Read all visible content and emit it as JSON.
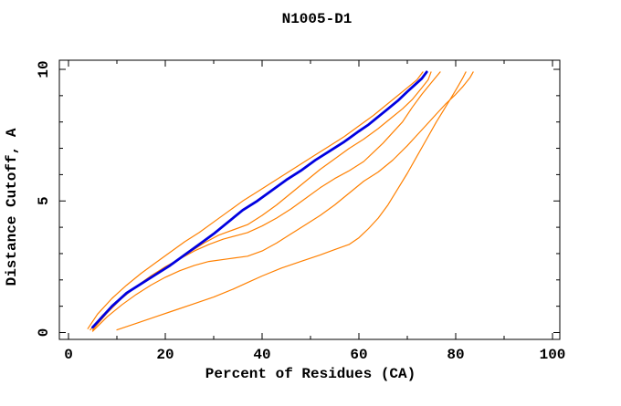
{
  "title": "N1005-D1",
  "chart_data": {
    "type": "line",
    "title": "N1005-D1",
    "xlabel": "Percent of Residues (CA)",
    "ylabel": "Distance Cutoff, A",
    "xlim": [
      0,
      100
    ],
    "ylim": [
      0,
      10
    ],
    "x_major_ticks": [
      0,
      20,
      40,
      60,
      80,
      100
    ],
    "x_minor_step": 10,
    "y_major_ticks": [
      0,
      5,
      10
    ],
    "y_minor_step": 1,
    "grid": false,
    "legend": "none",
    "colors": {
      "orange_line": "#ff8000",
      "blue_line": "#0000e0",
      "axis": "#000000",
      "background": "#ffffff"
    },
    "series": [
      {
        "name": "orange-line-1",
        "color": "#ff8000",
        "width": 1.2,
        "points": [
          [
            4,
            0.15
          ],
          [
            6,
            0.7
          ],
          [
            9,
            1.3
          ],
          [
            12,
            1.8
          ],
          [
            15,
            2.25
          ],
          [
            18,
            2.65
          ],
          [
            21,
            3.05
          ],
          [
            24,
            3.45
          ],
          [
            27,
            3.8
          ],
          [
            30,
            4.2
          ],
          [
            33,
            4.6
          ],
          [
            36,
            5.0
          ],
          [
            39,
            5.35
          ],
          [
            42,
            5.7
          ],
          [
            45,
            6.05
          ],
          [
            48,
            6.4
          ],
          [
            51,
            6.75
          ],
          [
            54,
            7.1
          ],
          [
            57,
            7.45
          ],
          [
            60,
            7.85
          ],
          [
            63,
            8.25
          ],
          [
            66,
            8.7
          ],
          [
            68,
            9.0
          ],
          [
            70,
            9.3
          ],
          [
            72,
            9.6
          ],
          [
            73.2,
            9.9
          ]
        ]
      },
      {
        "name": "orange-line-2",
        "color": "#ff8000",
        "width": 1.2,
        "points": [
          [
            4.5,
            0.1
          ],
          [
            7,
            0.65
          ],
          [
            10,
            1.15
          ],
          [
            13,
            1.6
          ],
          [
            16,
            2.0
          ],
          [
            19,
            2.35
          ],
          [
            22,
            2.7
          ],
          [
            25,
            3.05
          ],
          [
            28,
            3.4
          ],
          [
            31,
            3.7
          ],
          [
            34,
            3.9
          ],
          [
            37,
            4.1
          ],
          [
            40,
            4.45
          ],
          [
            43,
            4.85
          ],
          [
            46,
            5.3
          ],
          [
            49,
            5.75
          ],
          [
            52,
            6.2
          ],
          [
            55,
            6.6
          ],
          [
            58,
            7.0
          ],
          [
            61,
            7.35
          ],
          [
            64,
            7.75
          ],
          [
            67,
            8.2
          ],
          [
            69,
            8.5
          ],
          [
            71,
            8.85
          ],
          [
            73,
            9.3
          ],
          [
            74.3,
            9.6
          ],
          [
            74.9,
            9.9
          ]
        ]
      },
      {
        "name": "orange-line-3",
        "color": "#ff8000",
        "width": 1.2,
        "points": [
          [
            5,
            0.1
          ],
          [
            8,
            0.75
          ],
          [
            11,
            1.3
          ],
          [
            14,
            1.75
          ],
          [
            17,
            2.15
          ],
          [
            20,
            2.5
          ],
          [
            23,
            2.8
          ],
          [
            26,
            3.1
          ],
          [
            29,
            3.35
          ],
          [
            32,
            3.55
          ],
          [
            35,
            3.7
          ],
          [
            37,
            3.8
          ],
          [
            40,
            4.05
          ],
          [
            43,
            4.35
          ],
          [
            46,
            4.7
          ],
          [
            49,
            5.1
          ],
          [
            52,
            5.5
          ],
          [
            55,
            5.85
          ],
          [
            58,
            6.15
          ],
          [
            61,
            6.5
          ],
          [
            63,
            6.85
          ],
          [
            65,
            7.2
          ],
          [
            67,
            7.6
          ],
          [
            69,
            8.0
          ],
          [
            71,
            8.55
          ],
          [
            73,
            9.05
          ],
          [
            75,
            9.5
          ],
          [
            76.8,
            9.9
          ]
        ]
      },
      {
        "name": "orange-line-4",
        "color": "#ff8000",
        "width": 1.2,
        "points": [
          [
            5,
            0.05
          ],
          [
            8,
            0.6
          ],
          [
            11,
            1.05
          ],
          [
            14,
            1.45
          ],
          [
            17,
            1.8
          ],
          [
            20,
            2.1
          ],
          [
            23,
            2.35
          ],
          [
            26,
            2.55
          ],
          [
            29,
            2.7
          ],
          [
            33,
            2.8
          ],
          [
            37,
            2.9
          ],
          [
            40,
            3.1
          ],
          [
            43,
            3.4
          ],
          [
            46,
            3.75
          ],
          [
            49,
            4.1
          ],
          [
            52,
            4.45
          ],
          [
            55,
            4.85
          ],
          [
            58,
            5.3
          ],
          [
            61,
            5.75
          ],
          [
            64,
            6.1
          ],
          [
            67,
            6.55
          ],
          [
            70,
            7.1
          ],
          [
            72,
            7.5
          ],
          [
            74,
            7.9
          ],
          [
            76,
            8.3
          ],
          [
            78,
            8.7
          ],
          [
            80,
            9.05
          ],
          [
            81.5,
            9.35
          ],
          [
            83,
            9.7
          ],
          [
            83.6,
            9.9
          ]
        ]
      },
      {
        "name": "orange-line-5",
        "color": "#ff8000",
        "width": 1.2,
        "points": [
          [
            10,
            0.1
          ],
          [
            14,
            0.35
          ],
          [
            18,
            0.6
          ],
          [
            22,
            0.85
          ],
          [
            26,
            1.1
          ],
          [
            30,
            1.35
          ],
          [
            34,
            1.65
          ],
          [
            37,
            1.9
          ],
          [
            40,
            2.15
          ],
          [
            44,
            2.45
          ],
          [
            48,
            2.7
          ],
          [
            52,
            2.95
          ],
          [
            55,
            3.15
          ],
          [
            58,
            3.35
          ],
          [
            60,
            3.6
          ],
          [
            62,
            3.95
          ],
          [
            64,
            4.35
          ],
          [
            66,
            4.85
          ],
          [
            68,
            5.45
          ],
          [
            70,
            6.05
          ],
          [
            72,
            6.7
          ],
          [
            74,
            7.35
          ],
          [
            76,
            8.0
          ],
          [
            77.5,
            8.45
          ],
          [
            79,
            8.9
          ],
          [
            80.3,
            9.3
          ],
          [
            81.4,
            9.65
          ],
          [
            82.1,
            9.9
          ]
        ]
      },
      {
        "name": "blue-thick-line",
        "color": "#0000e0",
        "width": 2.8,
        "points": [
          [
            5,
            0.2
          ],
          [
            7,
            0.6
          ],
          [
            9,
            1.0
          ],
          [
            12,
            1.5
          ],
          [
            15,
            1.85
          ],
          [
            18,
            2.2
          ],
          [
            21,
            2.55
          ],
          [
            24,
            2.95
          ],
          [
            27,
            3.35
          ],
          [
            30,
            3.75
          ],
          [
            33,
            4.2
          ],
          [
            36,
            4.65
          ],
          [
            39,
            5.0
          ],
          [
            42,
            5.4
          ],
          [
            45,
            5.8
          ],
          [
            48,
            6.15
          ],
          [
            51,
            6.55
          ],
          [
            54,
            6.9
          ],
          [
            57,
            7.25
          ],
          [
            60,
            7.65
          ],
          [
            62,
            7.9
          ],
          [
            64,
            8.2
          ],
          [
            66,
            8.5
          ],
          [
            68,
            8.8
          ],
          [
            70,
            9.15
          ],
          [
            71.5,
            9.4
          ],
          [
            73,
            9.65
          ],
          [
            74,
            9.9
          ]
        ]
      }
    ]
  }
}
